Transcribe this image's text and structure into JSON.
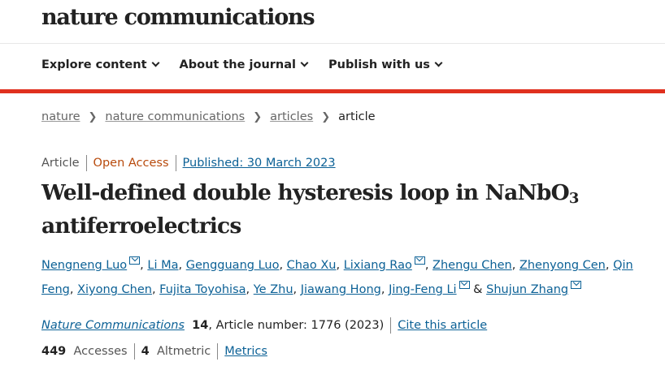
{
  "header": {
    "logo": "nature communications"
  },
  "nav": [
    {
      "label": "Explore content"
    },
    {
      "label": "About the journal"
    },
    {
      "label": "Publish with us"
    }
  ],
  "breadcrumb": [
    "nature",
    "nature communications",
    "articles",
    "article"
  ],
  "meta": {
    "type": "Article",
    "access": "Open Access",
    "published": "Published: 30 March 2023"
  },
  "title": {
    "main": "Well-defined double hysteresis loop in NaNbO",
    "sub": "3",
    "rest": " antiferroelectrics"
  },
  "authors": [
    {
      "name": "Nengneng Luo",
      "mail": true
    },
    {
      "name": "Li Ma"
    },
    {
      "name": "Gengguang Luo"
    },
    {
      "name": "Chao Xu"
    },
    {
      "name": "Lixiang Rao",
      "mail": true
    },
    {
      "name": "Zhengu Chen"
    },
    {
      "name": "Zhenyong Cen"
    },
    {
      "name": "Qin Feng"
    },
    {
      "name": "Xiyong Chen"
    },
    {
      "name": "Fujita Toyohisa"
    },
    {
      "name": "Ye Zhu"
    },
    {
      "name": "Jiawang Hong"
    },
    {
      "name": "Jing-Feng Li",
      "mail": true
    },
    {
      "name": "Shujun Zhang",
      "mail": true
    }
  ],
  "citation": {
    "journal": "Nature Communications",
    "volume": "14",
    "rest": ", Article number: 1776 (2023)",
    "cite": "Cite this article"
  },
  "metrics": {
    "accesses": "449",
    "accesses_label": "Accesses",
    "altmetric": "4",
    "altmetric_label": "Altmetric",
    "metrics_link": "Metrics"
  },
  "colors": {
    "accent_red": "#e0301e",
    "link": "#0c6196",
    "open_access": "#b84a0c"
  }
}
